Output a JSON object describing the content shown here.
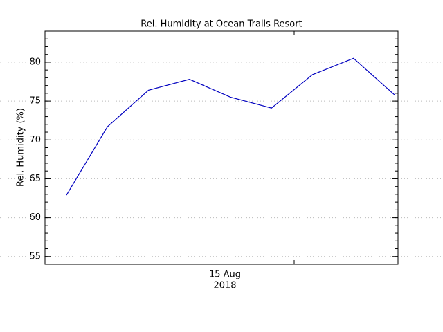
{
  "chart_data": {
    "type": "line",
    "title": "Rel. Humidity at Ocean Trails Resort",
    "ylabel": "Rel. Humidity (%)",
    "xticklabel": [
      "15 Aug",
      "2018"
    ],
    "categories": [
      null,
      null,
      null,
      null,
      null,
      null,
      null,
      null,
      null
    ],
    "series": [
      {
        "name": "Rel. Humidity",
        "color": "#0000c0",
        "values": [
          62.9,
          71.7,
          76.4,
          77.8,
          75.5,
          74.1,
          78.4,
          80.5,
          75.8
        ]
      }
    ],
    "ylim": [
      54,
      84
    ],
    "yticks": [
      55,
      60,
      65,
      70,
      75,
      80
    ],
    "grid": true
  }
}
